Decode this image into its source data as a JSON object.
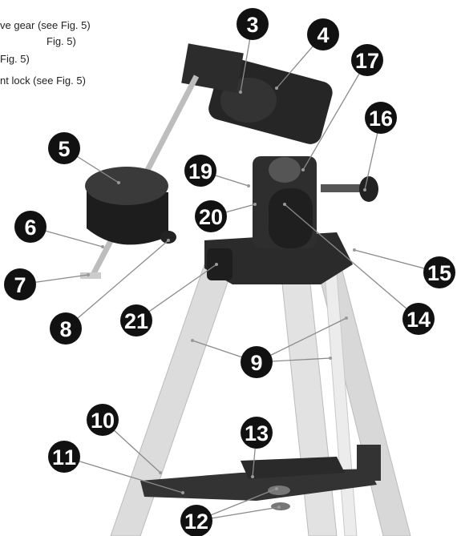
{
  "notes": [
    "ve gear (see Fig. 5)",
    "Fig. 5)",
    "Fig. 5)",
    "nt lock (see Fig. 5)"
  ],
  "callouts": [
    {
      "label": "3"
    },
    {
      "label": "4"
    },
    {
      "label": "17"
    },
    {
      "label": "16"
    },
    {
      "label": "5"
    },
    {
      "label": "19"
    },
    {
      "label": "20"
    },
    {
      "label": "6"
    },
    {
      "label": "7"
    },
    {
      "label": "8"
    },
    {
      "label": "21"
    },
    {
      "label": "15"
    },
    {
      "label": "14"
    },
    {
      "label": "9"
    },
    {
      "label": "10"
    },
    {
      "label": "11"
    },
    {
      "label": "13"
    },
    {
      "label": "12"
    }
  ]
}
